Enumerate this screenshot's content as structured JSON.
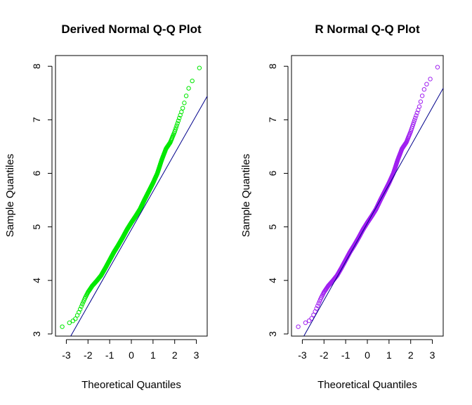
{
  "chart_data": [
    {
      "type": "scatter",
      "title": "Derived Normal Q-Q Plot",
      "xlabel": "Theoretical Quantiles",
      "ylabel": "Sample Quantiles",
      "xlim": [
        -3.5,
        3.5
      ],
      "ylim": [
        2.96,
        8.2
      ],
      "x_ticks": [
        "-3",
        "-2",
        "-1",
        "0",
        "1",
        "2",
        "3"
      ],
      "y_ticks": [
        "3",
        "4",
        "5",
        "6",
        "7",
        "8"
      ],
      "grid": false,
      "legend": "none",
      "point_color": "#00e800",
      "line_color": "#00008b",
      "reference_line": {
        "x": [
          -3.5,
          3.5
        ],
        "y": [
          2.46,
          7.44
        ]
      },
      "curve": {
        "x": [
          -3.25,
          -3.05,
          -2.9,
          -2.75,
          -2.6,
          -2.45,
          -2.3,
          -2.15,
          -2.0,
          -1.8,
          -1.6,
          -1.4,
          -1.2,
          -1.0,
          -0.8,
          -0.6,
          -0.4,
          -0.2,
          0.0,
          0.2,
          0.4,
          0.6,
          0.8,
          1.0,
          1.2,
          1.4,
          1.6,
          1.8,
          2.0,
          2.2,
          2.4,
          2.6,
          2.8,
          3.0,
          3.2
        ],
        "y": [
          3.12,
          3.17,
          3.2,
          3.23,
          3.27,
          3.38,
          3.52,
          3.66,
          3.78,
          3.9,
          3.99,
          4.09,
          4.23,
          4.38,
          4.53,
          4.66,
          4.8,
          4.95,
          5.08,
          5.2,
          5.33,
          5.5,
          5.66,
          5.82,
          6.0,
          6.25,
          6.46,
          6.58,
          6.78,
          7.02,
          7.25,
          7.55,
          7.72,
          7.85,
          8.02
        ]
      },
      "sample_size": 700
    },
    {
      "type": "scatter",
      "title": "R Normal Q-Q Plot",
      "xlabel": "Theoretical Quantiles",
      "ylabel": "Sample Quantiles",
      "xlim": [
        -3.5,
        3.5
      ],
      "ylim": [
        2.96,
        8.2
      ],
      "x_ticks": [
        "-3",
        "-2",
        "-1",
        "0",
        "1",
        "2",
        "3"
      ],
      "y_ticks": [
        "3",
        "4",
        "5",
        "6",
        "7",
        "8"
      ],
      "grid": false,
      "legend": "none",
      "point_color": "#a020f0",
      "line_color": "#00008b",
      "reference_line": {
        "x": [
          -3.5,
          3.5
        ],
        "y": [
          2.55,
          7.59
        ]
      },
      "curve": {
        "x": [
          -3.25,
          -3.05,
          -2.9,
          -2.75,
          -2.6,
          -2.45,
          -2.3,
          -2.15,
          -2.0,
          -1.8,
          -1.6,
          -1.4,
          -1.2,
          -1.0,
          -0.8,
          -0.6,
          -0.4,
          -0.2,
          0.0,
          0.2,
          0.4,
          0.6,
          0.8,
          1.0,
          1.2,
          1.4,
          1.6,
          1.8,
          2.0,
          2.2,
          2.4,
          2.6,
          2.8,
          3.0,
          3.3
        ],
        "y": [
          3.12,
          3.17,
          3.2,
          3.23,
          3.27,
          3.38,
          3.52,
          3.66,
          3.78,
          3.9,
          3.99,
          4.09,
          4.23,
          4.38,
          4.53,
          4.66,
          4.8,
          4.95,
          5.08,
          5.2,
          5.33,
          5.5,
          5.66,
          5.82,
          6.0,
          6.25,
          6.46,
          6.58,
          6.78,
          7.02,
          7.25,
          7.55,
          7.72,
          7.8,
          8.03
        ]
      },
      "sample_size": 700
    }
  ]
}
